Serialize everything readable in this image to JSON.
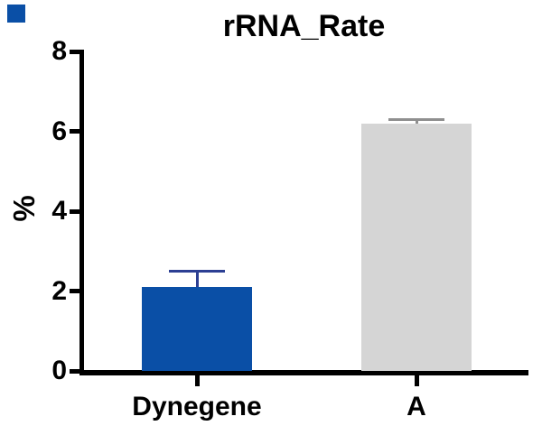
{
  "corner_marker": {
    "color": "#0a4fa6"
  },
  "chart_data": {
    "type": "bar",
    "title": "rRNA_Rate",
    "ylabel": "%",
    "xlabel": "",
    "categories": [
      "Dynegene",
      "A"
    ],
    "values": [
      2.1,
      6.2
    ],
    "errors": [
      0.4,
      0.1
    ],
    "error_style": "upper-cap-only",
    "bar_colors": [
      "#0a4fa6",
      "#d5d5d5"
    ],
    "error_bar_colors": [
      "#2c3f93",
      "#8f8f8f"
    ],
    "ytick_labels": [
      "0",
      "2",
      "4",
      "6",
      "8"
    ],
    "ytick_values": [
      0,
      2,
      4,
      6,
      8
    ],
    "ylim": [
      0,
      8
    ],
    "grid": false,
    "legend_position": "none",
    "axis_color": "#000000",
    "text_color": "#000000",
    "background_color": "#ffffff"
  }
}
